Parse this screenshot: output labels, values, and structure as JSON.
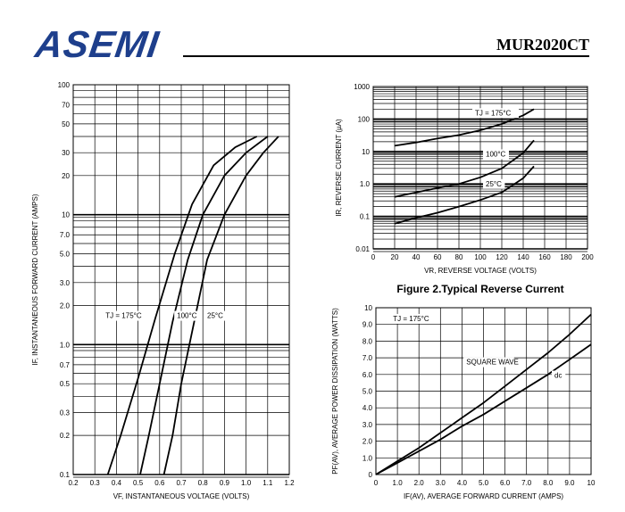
{
  "header": {
    "logo": "ASEMI",
    "part_number": "MUR2020CT"
  },
  "chart_data": [
    {
      "id": "forward",
      "type": "line",
      "xlabel": "VF, INSTANTANEOUS VOLTAGE (VOLTS)",
      "ylabel": "IF, INSTANTANEOUS FORWARD CURRENT (AMPS)",
      "xlim": [
        0.2,
        1.2
      ],
      "ylim": [
        0.1,
        100
      ],
      "y_scale": "log",
      "grid": true,
      "x_ticks": [
        "0.2",
        "0.3",
        "0.4",
        "0.5",
        "0.6",
        "0.7",
        "0.8",
        "0.9",
        "1.0",
        "1.1",
        "1.2"
      ],
      "y_ticks": [
        "0.1",
        "0.2",
        "0.3",
        "0.5",
        "0.7",
        "1.0",
        "2.0",
        "3.0",
        "5.0",
        "7.0",
        "10",
        "20",
        "30",
        "50",
        "70",
        "100"
      ],
      "series": [
        {
          "name": "TJ = 175°C",
          "x": [
            0.36,
            0.42,
            0.5,
            0.58,
            0.67,
            0.75,
            0.85,
            0.95,
            1.05
          ],
          "y": [
            0.1,
            0.2,
            0.55,
            1.6,
            5.0,
            12,
            24,
            33,
            40
          ]
        },
        {
          "name": "100°C",
          "x": [
            0.51,
            0.55,
            0.6,
            0.66,
            0.73,
            0.8,
            0.9,
            1.0,
            1.1
          ],
          "y": [
            0.1,
            0.2,
            0.5,
            1.5,
            4.5,
            10,
            20,
            30,
            40
          ]
        },
        {
          "name": "25°C",
          "x": [
            0.62,
            0.66,
            0.7,
            0.76,
            0.82,
            0.9,
            1.0,
            1.08,
            1.15
          ],
          "y": [
            0.1,
            0.2,
            0.5,
            1.5,
            4.5,
            10,
            20,
            30,
            40
          ]
        }
      ],
      "annotations": [
        "TJ = 175°C",
        "100°C",
        "25°C"
      ]
    },
    {
      "id": "reverse",
      "type": "line",
      "title": "Figure 2.Typical Reverse Current",
      "xlabel": "VR, REVERSE VOLTAGE (VOLTS)",
      "ylabel": "IR, REVERSE CURRENT (µA)",
      "xlim": [
        0,
        200
      ],
      "ylim": [
        0.01,
        1000
      ],
      "y_scale": "log",
      "grid": true,
      "x_ticks": [
        "0",
        "20",
        "40",
        "60",
        "80",
        "100",
        "120",
        "140",
        "160",
        "180",
        "200"
      ],
      "y_ticks": [
        "0.01",
        "0.1",
        "1.0",
        "10",
        "100",
        "1000"
      ],
      "series": [
        {
          "name": "TJ = 175°C",
          "x": [
            20,
            40,
            60,
            80,
            100,
            120,
            140,
            150
          ],
          "y": [
            15,
            19,
            25,
            32,
            45,
            70,
            130,
            200
          ]
        },
        {
          "name": "100°C",
          "x": [
            20,
            40,
            60,
            80,
            100,
            120,
            140,
            150
          ],
          "y": [
            0.4,
            0.55,
            0.75,
            1.0,
            1.6,
            3.0,
            9,
            22
          ]
        },
        {
          "name": "25°C",
          "x": [
            20,
            40,
            60,
            80,
            100,
            120,
            140,
            150
          ],
          "y": [
            0.06,
            0.09,
            0.13,
            0.2,
            0.32,
            0.55,
            1.5,
            3.5
          ]
        }
      ],
      "annotations": [
        "TJ = 175°C",
        "100°C",
        "25°C"
      ]
    },
    {
      "id": "power",
      "type": "line",
      "xlabel": "IF(AV), AVERAGE FORWARD CURRENT (AMPS)",
      "ylabel": "PF(AV), AVERAGE POWER DISSIPATION (WATTS)",
      "xlim": [
        0,
        10
      ],
      "ylim": [
        0,
        10
      ],
      "grid": true,
      "x_ticks": [
        "0",
        "1.0",
        "2.0",
        "3.0",
        "4.0",
        "5.0",
        "6.0",
        "7.0",
        "8.0",
        "9.0",
        "10"
      ],
      "y_ticks": [
        "0",
        "1.0",
        "2.0",
        "3.0",
        "4.0",
        "5.0",
        "6.0",
        "7.0",
        "8.0",
        "9.0",
        "10"
      ],
      "series": [
        {
          "name": "SQUARE WAVE",
          "x": [
            0,
            1,
            2,
            3,
            4,
            5,
            6,
            7,
            8,
            9,
            10
          ],
          "y": [
            0,
            0.8,
            1.6,
            2.5,
            3.4,
            4.3,
            5.3,
            6.3,
            7.3,
            8.4,
            9.6
          ]
        },
        {
          "name": "dc",
          "x": [
            0,
            1,
            2,
            3,
            4,
            5,
            6,
            7,
            8,
            9,
            10
          ],
          "y": [
            0,
            0.7,
            1.4,
            2.1,
            2.9,
            3.6,
            4.4,
            5.2,
            6.0,
            6.9,
            7.8
          ]
        }
      ],
      "annotations": [
        "TJ = 175°C",
        "SQUARE WAVE",
        "dc"
      ]
    }
  ]
}
